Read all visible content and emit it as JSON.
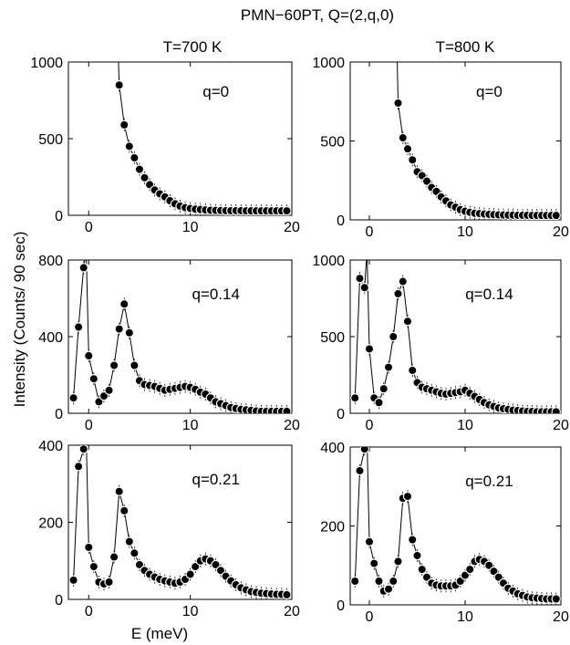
{
  "figure": {
    "title": "PMN−60PT, Q=(2,q,0)",
    "ylabel": "Intensity (Counts/ 90 sec)",
    "xlabel": "E (meV)",
    "columns": [
      "T=700 K",
      "T=800 K"
    ]
  },
  "chart_data": [
    {
      "type": "scatter",
      "temperature": "T=700 K",
      "annotation": "q=0",
      "xlim": [
        -2,
        20
      ],
      "ylim": [
        0,
        1000
      ],
      "xticks": [
        0,
        10,
        20
      ],
      "yticks": [
        0,
        500,
        1000
      ],
      "x": [
        3,
        3.5,
        4,
        4.5,
        5,
        5.5,
        6,
        6.5,
        7,
        7.5,
        8,
        8.5,
        9,
        9.5,
        10,
        10.5,
        11,
        11.5,
        12,
        12.5,
        13,
        13.5,
        14,
        14.5,
        15,
        15.5,
        16,
        16.5,
        17,
        17.5,
        18,
        18.5,
        19,
        19.5
      ],
      "y": [
        850,
        590,
        450,
        375,
        300,
        245,
        200,
        165,
        140,
        120,
        95,
        75,
        60,
        50,
        45,
        40,
        38,
        35,
        33,
        32,
        31,
        30,
        30,
        30,
        30,
        29,
        29,
        29,
        29,
        29,
        29,
        29,
        29,
        29
      ]
    },
    {
      "type": "scatter",
      "temperature": "T=800 K",
      "annotation": "q=0",
      "xlim": [
        -2,
        20
      ],
      "ylim": [
        0,
        1000
      ],
      "xticks": [
        0,
        10,
        20
      ],
      "yticks": [
        0,
        500,
        1000
      ],
      "x": [
        3,
        3.5,
        4,
        4.5,
        5,
        5.5,
        6,
        6.5,
        7,
        7.5,
        8,
        8.5,
        9,
        9.5,
        10,
        10.5,
        11,
        11.5,
        12,
        12.5,
        13,
        13.5,
        14,
        14.5,
        15,
        15.5,
        16,
        16.5,
        17,
        17.5,
        18,
        18.5,
        19,
        19.5
      ],
      "y": [
        740,
        520,
        450,
        380,
        305,
        280,
        245,
        205,
        180,
        145,
        120,
        95,
        80,
        65,
        55,
        48,
        42,
        40,
        37,
        35,
        33,
        32,
        31,
        30,
        30,
        29,
        29,
        29,
        28,
        28,
        28,
        28,
        28,
        28
      ]
    },
    {
      "type": "scatter",
      "temperature": "T=700 K",
      "annotation": "q=0.14",
      "xlim": [
        -2,
        20
      ],
      "ylim": [
        0,
        800
      ],
      "xticks": [
        0,
        10,
        20
      ],
      "yticks": [
        0,
        400,
        800
      ],
      "x": [
        -1.5,
        -1,
        -0.5,
        0,
        0.5,
        1,
        1.5,
        2,
        2.5,
        3,
        3.5,
        4,
        4.5,
        5,
        5.5,
        6,
        6.5,
        7,
        7.5,
        8,
        8.5,
        9,
        9.5,
        10,
        10.5,
        11,
        11.5,
        12,
        12.5,
        13,
        13.5,
        14,
        14.5,
        15,
        15.5,
        16,
        16.5,
        17,
        17.5,
        18,
        18.5,
        19,
        19.5
      ],
      "y": [
        80,
        450,
        760,
        300,
        180,
        60,
        90,
        120,
        250,
        440,
        570,
        420,
        250,
        170,
        150,
        145,
        140,
        130,
        120,
        125,
        130,
        135,
        140,
        135,
        125,
        110,
        100,
        80,
        60,
        50,
        40,
        30,
        25,
        20,
        18,
        15,
        12,
        10,
        10,
        10,
        10,
        10,
        10
      ]
    },
    {
      "type": "scatter",
      "temperature": "T=800 K",
      "annotation": "q=0.14",
      "xlim": [
        -2,
        20
      ],
      "ylim": [
        0,
        1000
      ],
      "xticks": [
        0,
        10,
        20
      ],
      "yticks": [
        0,
        500,
        1000
      ],
      "x": [
        -1.5,
        -1,
        -0.5,
        0,
        0.5,
        1,
        1.5,
        2,
        2.5,
        3,
        3.5,
        4,
        4.5,
        5,
        5.5,
        6,
        6.5,
        7,
        7.5,
        8,
        8.5,
        9,
        9.5,
        10,
        10.5,
        11,
        11.5,
        12,
        12.5,
        13,
        13.5,
        14,
        14.5,
        15,
        15.5,
        16,
        16.5,
        17,
        17.5,
        18,
        18.5,
        19,
        19.5
      ],
      "y": [
        100,
        880,
        820,
        420,
        100,
        70,
        160,
        300,
        500,
        780,
        860,
        600,
        280,
        200,
        170,
        160,
        150,
        140,
        130,
        125,
        130,
        135,
        140,
        150,
        130,
        110,
        90,
        70,
        55,
        45,
        35,
        30,
        25,
        20,
        18,
        15,
        12,
        12,
        10,
        10,
        10,
        10,
        10
      ]
    },
    {
      "type": "scatter",
      "temperature": "T=700 K",
      "annotation": "q=0.21",
      "xlim": [
        -2,
        20
      ],
      "ylim": [
        0,
        400
      ],
      "xticks": [
        0,
        10,
        20
      ],
      "yticks": [
        0,
        200,
        400
      ],
      "x": [
        -1.5,
        -1,
        -0.5,
        0,
        0.5,
        1,
        1.5,
        2,
        2.5,
        3,
        3.5,
        4,
        4.5,
        5,
        5.5,
        6,
        6.5,
        7,
        7.5,
        8,
        8.5,
        9,
        9.5,
        10,
        10.5,
        11,
        11.5,
        12,
        12.5,
        13,
        13.5,
        14,
        14.5,
        15,
        15.5,
        16,
        16.5,
        17,
        17.5,
        18,
        18.5,
        19,
        19.5
      ],
      "y": [
        50,
        345,
        390,
        135,
        85,
        45,
        40,
        45,
        110,
        280,
        230,
        150,
        120,
        90,
        75,
        65,
        58,
        52,
        48,
        45,
        42,
        45,
        52,
        65,
        85,
        100,
        105,
        100,
        90,
        75,
        60,
        48,
        38,
        30,
        25,
        20,
        18,
        16,
        15,
        14,
        13,
        13,
        12
      ]
    },
    {
      "type": "scatter",
      "temperature": "T=800 K",
      "annotation": "q=0.21",
      "xlim": [
        -2,
        20
      ],
      "ylim": [
        0,
        400
      ],
      "xticks": [
        0,
        10,
        20
      ],
      "yticks": [
        0,
        200,
        400
      ],
      "x": [
        -1.5,
        -1,
        -0.5,
        0,
        0.5,
        1,
        1.5,
        2,
        2.5,
        3,
        3.5,
        4,
        4.5,
        5,
        5.5,
        6,
        6.5,
        7,
        7.5,
        8,
        8.5,
        9,
        9.5,
        10,
        10.5,
        11,
        11.5,
        12,
        12.5,
        13,
        13.5,
        14,
        14.5,
        15,
        15.5,
        16,
        16.5,
        17,
        17.5,
        18,
        18.5,
        19,
        19.5
      ],
      "y": [
        60,
        340,
        395,
        160,
        105,
        60,
        35,
        40,
        60,
        110,
        270,
        275,
        165,
        125,
        90,
        70,
        55,
        50,
        48,
        48,
        48,
        50,
        60,
        75,
        90,
        110,
        115,
        110,
        100,
        85,
        70,
        55,
        42,
        35,
        28,
        24,
        20,
        18,
        17,
        16,
        15,
        15,
        15
      ]
    }
  ]
}
